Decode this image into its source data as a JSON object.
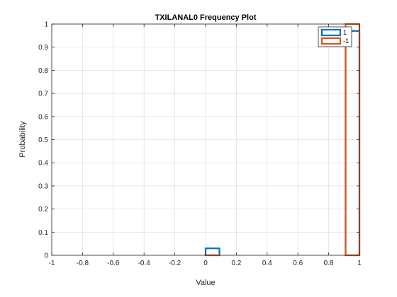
{
  "chart_data": {
    "type": "histogram",
    "title": "TXILANAL0 Frequency Plot",
    "xlabel": "Value",
    "ylabel": "Probability",
    "xlim": [
      -1,
      1
    ],
    "ylim": [
      0,
      1
    ],
    "xticks": [
      "-1",
      "-0.8",
      "-0.6",
      "-0.4",
      "-0.2",
      "0",
      "0.2",
      "0.4",
      "0.6",
      "0.8",
      "1"
    ],
    "yticks": [
      "0",
      "0.1",
      "0.2",
      "0.3",
      "0.4",
      "0.5",
      "0.6",
      "0.7",
      "0.8",
      "0.9",
      "1"
    ],
    "grid": true,
    "legend_position": "top-right",
    "series": [
      {
        "name": "1",
        "color": "#0072BD",
        "bins": [
          {
            "x0": 0.0,
            "x1": 0.09,
            "value": 0.03
          },
          {
            "x0": 0.91,
            "x1": 1.0,
            "value": 0.97
          }
        ]
      },
      {
        "name": "-1",
        "color": "#D95319",
        "bins": [
          {
            "x0": 0.0,
            "x1": 0.09,
            "value": 0.0
          },
          {
            "x0": 0.91,
            "x1": 1.0,
            "value": 1.0
          }
        ]
      }
    ]
  }
}
